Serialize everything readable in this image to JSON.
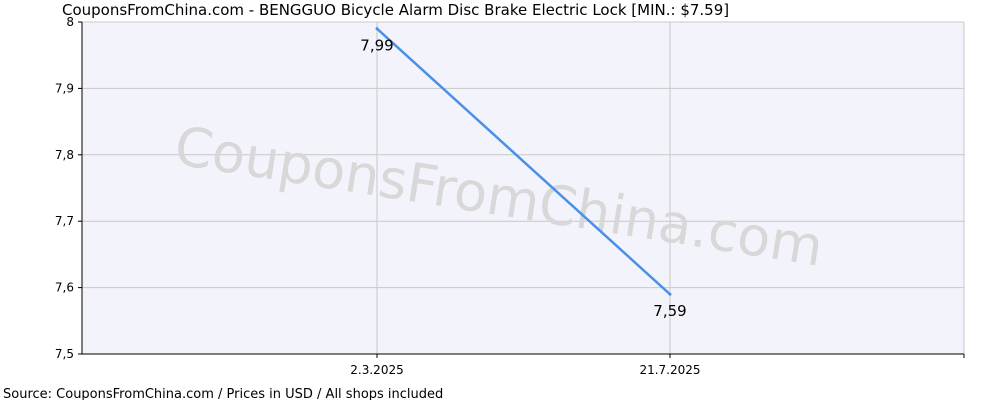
{
  "chart_data": {
    "type": "line",
    "title": "CouponsFromChina.com - BENGGUO Bicycle Alarm Disc Brake Electric Lock [MIN.: $7.59]",
    "watermark": "CouponsFromChina.com",
    "footer": "Source: CouponsFromChina.com / Prices in USD / All shops included",
    "xlabel": "",
    "ylabel": "",
    "ylim": [
      7.5,
      8.0
    ],
    "yticks": [
      "8",
      "7,9",
      "7,8",
      "7,7",
      "7,6",
      "7,5"
    ],
    "ytick_values": [
      8.0,
      7.9,
      7.8,
      7.7,
      7.6,
      7.5
    ],
    "xticks": [
      "2.3.2025",
      "21.7.2025"
    ],
    "grid": true,
    "series": [
      {
        "points": [
          {
            "x": "2.3.2025",
            "y": 7.99,
            "label": "7,99"
          },
          {
            "x": "21.7.2025",
            "y": 7.59,
            "label": "7,59"
          }
        ],
        "color": "#4a8fe8"
      }
    ],
    "colors": {
      "plot_bg": "#f3f3fb",
      "grid": "#c8c8c8",
      "axis": "#000000",
      "watermark": "#d8d8d8"
    }
  }
}
